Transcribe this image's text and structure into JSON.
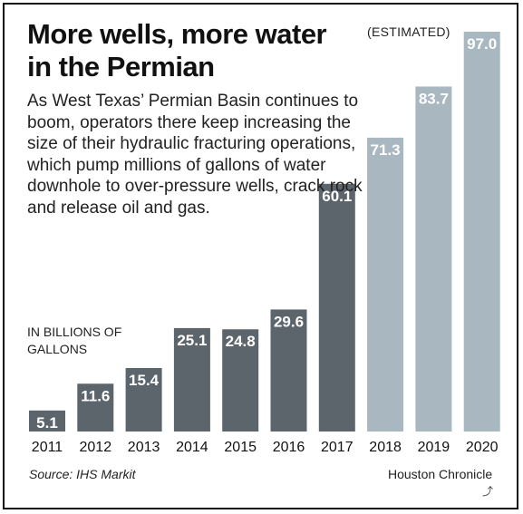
{
  "title": "More wells, more water in the Permian",
  "description": "As West Texas’ Permian Basin continues to boom, operators there keep increasing the size of their hydraulic fracturing operations, which pump millions of gallons of water downhole to over-pressure wells, crack rock and release oil and gas.",
  "estimated_label": "(ESTIMATED)",
  "units_label": "IN BILLIONS OF GALLONS",
  "source": "Source: IHS Markit",
  "credit": "Houston Chronicle",
  "share_icon": "share-icon",
  "colors": {
    "actual": "#5d656c",
    "estimated": "#a9b7c0",
    "label_text": "#ffffff"
  },
  "chart_data": {
    "type": "bar",
    "categories": [
      "2011",
      "2012",
      "2013",
      "2014",
      "2015",
      "2016",
      "2017",
      "2018",
      "2019",
      "2020"
    ],
    "values": [
      5.1,
      11.6,
      15.4,
      25.1,
      24.8,
      29.6,
      60.1,
      71.3,
      83.7,
      97.0
    ],
    "value_labels": [
      "5.1",
      "11.6",
      "15.4",
      "25.1",
      "24.8",
      "29.6",
      "60.1",
      "71.3",
      "83.7",
      "97.0"
    ],
    "estimated": [
      false,
      false,
      false,
      false,
      false,
      false,
      false,
      true,
      true,
      true
    ],
    "title": "More wells, more water in the Permian",
    "ylabel": "IN BILLIONS OF GALLONS",
    "ylim": [
      0,
      97.0
    ],
    "grid": false,
    "legend": "none"
  }
}
